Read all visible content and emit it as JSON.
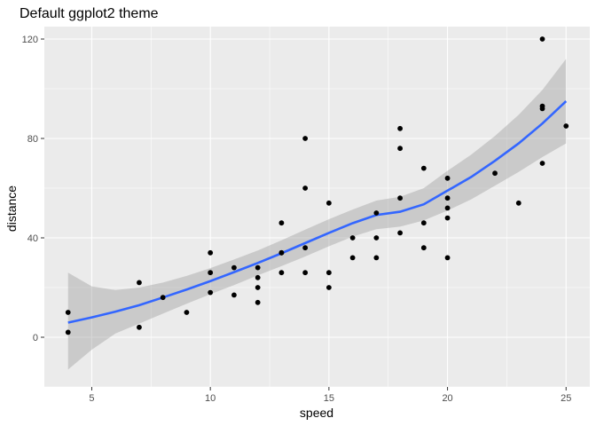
{
  "chart_data": {
    "type": "scatter",
    "title": "Default ggplot2 theme",
    "xlabel": "speed",
    "ylabel": "distance",
    "xlim": [
      3.0,
      26.0
    ],
    "ylim": [
      -20,
      125
    ],
    "x_ticks_major": [
      5,
      10,
      15,
      20,
      25
    ],
    "x_ticks_minor": [
      7.5,
      12.5,
      17.5,
      22.5
    ],
    "y_ticks_major": [
      0,
      40,
      80,
      120
    ],
    "y_ticks_minor": [
      -20,
      20,
      60,
      100
    ],
    "grid": true,
    "colors": {
      "panel_background": "#ebebeb",
      "grid": "#ffffff",
      "points": "#000000",
      "smooth_line": "#3366ff",
      "ribbon": "#999999"
    },
    "points": [
      [
        4,
        2
      ],
      [
        4,
        10
      ],
      [
        7,
        4
      ],
      [
        7,
        22
      ],
      [
        8,
        16
      ],
      [
        9,
        10
      ],
      [
        10,
        18
      ],
      [
        10,
        26
      ],
      [
        10,
        34
      ],
      [
        11,
        17
      ],
      [
        11,
        28
      ],
      [
        12,
        14
      ],
      [
        12,
        20
      ],
      [
        12,
        24
      ],
      [
        12,
        28
      ],
      [
        13,
        26
      ],
      [
        13,
        34
      ],
      [
        13,
        34
      ],
      [
        13,
        46
      ],
      [
        14,
        26
      ],
      [
        14,
        36
      ],
      [
        14,
        60
      ],
      [
        14,
        80
      ],
      [
        15,
        20
      ],
      [
        15,
        26
      ],
      [
        15,
        54
      ],
      [
        16,
        32
      ],
      [
        16,
        40
      ],
      [
        17,
        32
      ],
      [
        17,
        40
      ],
      [
        17,
        50
      ],
      [
        18,
        42
      ],
      [
        18,
        56
      ],
      [
        18,
        76
      ],
      [
        18,
        84
      ],
      [
        19,
        36
      ],
      [
        19,
        46
      ],
      [
        19,
        68
      ],
      [
        20,
        32
      ],
      [
        20,
        48
      ],
      [
        20,
        52
      ],
      [
        20,
        56
      ],
      [
        20,
        64
      ],
      [
        22,
        66
      ],
      [
        23,
        54
      ],
      [
        24,
        70
      ],
      [
        24,
        92
      ],
      [
        24,
        93
      ],
      [
        24,
        120
      ],
      [
        25,
        85
      ]
    ],
    "smooth": {
      "method": "loess",
      "x": [
        4,
        5,
        6,
        7,
        8,
        9,
        10,
        11,
        12,
        13,
        14,
        15,
        16,
        17,
        18,
        19,
        20,
        21,
        22,
        23,
        24,
        25
      ],
      "y": [
        5.9,
        8.0,
        10.3,
        12.9,
        16.0,
        19.2,
        22.6,
        26.2,
        29.9,
        33.8,
        37.9,
        42.0,
        45.9,
        49.2,
        50.5,
        53.5,
        59.0,
        64.5,
        71.0,
        78.0,
        86.0,
        95.0
      ],
      "lower": [
        -13.0,
        -5.0,
        1.5,
        5.5,
        9.5,
        13.5,
        17.3,
        21.0,
        24.9,
        28.6,
        32.5,
        36.6,
        40.5,
        43.5,
        44.5,
        47.0,
        51.0,
        55.5,
        61.0,
        66.5,
        72.5,
        78.0
      ],
      "upper": [
        26.0,
        20.5,
        19.0,
        20.0,
        22.0,
        24.7,
        27.8,
        31.3,
        34.9,
        39.0,
        43.3,
        47.5,
        51.4,
        55.0,
        56.5,
        60.0,
        67.0,
        73.5,
        81.0,
        89.5,
        99.5,
        112.0
      ]
    }
  }
}
